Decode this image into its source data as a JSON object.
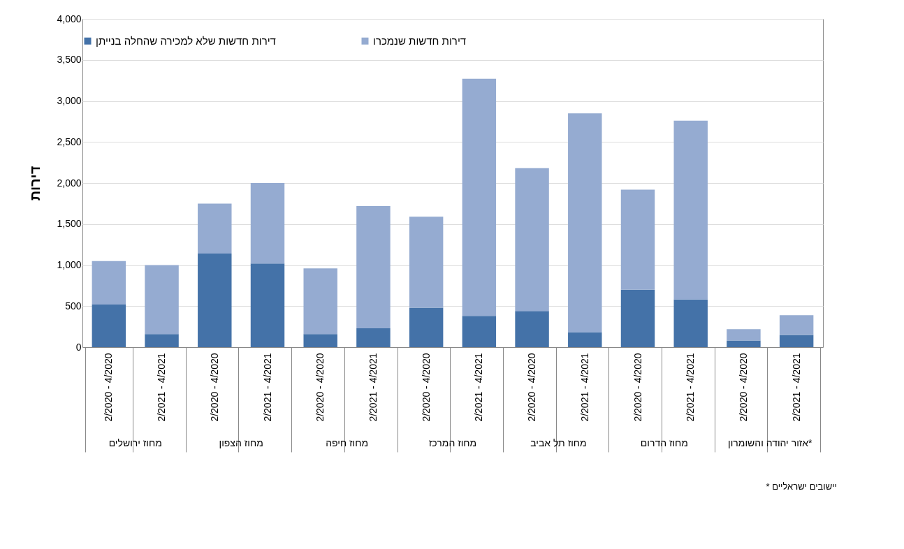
{
  "chart_data": {
    "type": "bar",
    "stacked": true,
    "ylabel": "דירות",
    "categories": [
      "2/2020 - 4/2020",
      "2/2021 - 4/2021",
      "2/2020 - 4/2020",
      "2/2021 - 4/2021",
      "2/2020 - 4/2020",
      "2/2021 - 4/2021",
      "2/2020 - 4/2020",
      "2/2021 - 4/2021",
      "2/2020 - 4/2020",
      "2/2021 - 4/2021",
      "2/2020 - 4/2020",
      "2/2021 - 4/2021",
      "2/2020 - 4/2020",
      "2/2021 - 4/2021"
    ],
    "series": [
      {
        "name": "דירות חדשות שלא למכירה שהחלה בנייתן",
        "color": "#4472a8",
        "values": [
          520,
          160,
          1140,
          1020,
          160,
          230,
          480,
          380,
          440,
          180,
          700,
          580,
          80,
          150
        ]
      },
      {
        "name": "דירות חדשות שנמכרו",
        "color": "#95abd1",
        "values": [
          530,
          840,
          610,
          980,
          800,
          1490,
          1110,
          2890,
          1740,
          2670,
          1220,
          2180,
          140,
          240
        ]
      }
    ],
    "ylim": [
      0,
      4000
    ],
    "yticks": [
      0,
      500,
      {
        "value": 1000,
        "label": "1,000"
      },
      {
        "value": 1500,
        "label": "1,500"
      },
      {
        "value": 2000,
        "label": "2,000"
      },
      {
        "value": 2500,
        "label": "2,500"
      },
      {
        "value": 3000,
        "label": "3,000"
      },
      {
        "value": 3500,
        "label": "3,500"
      },
      {
        "value": 4000,
        "label": "4,000"
      }
    ],
    "grid": "y",
    "legend": "top",
    "annotations": [
      "מחוז ירושלים",
      "מחוז הצפון",
      "מחוז חיפה",
      "מחוז המרכז",
      "מחוז תל אביב",
      "מחוז הדרום",
      "אזור יהודה והשומרון*",
      "* יישובים ישראליים"
    ]
  }
}
